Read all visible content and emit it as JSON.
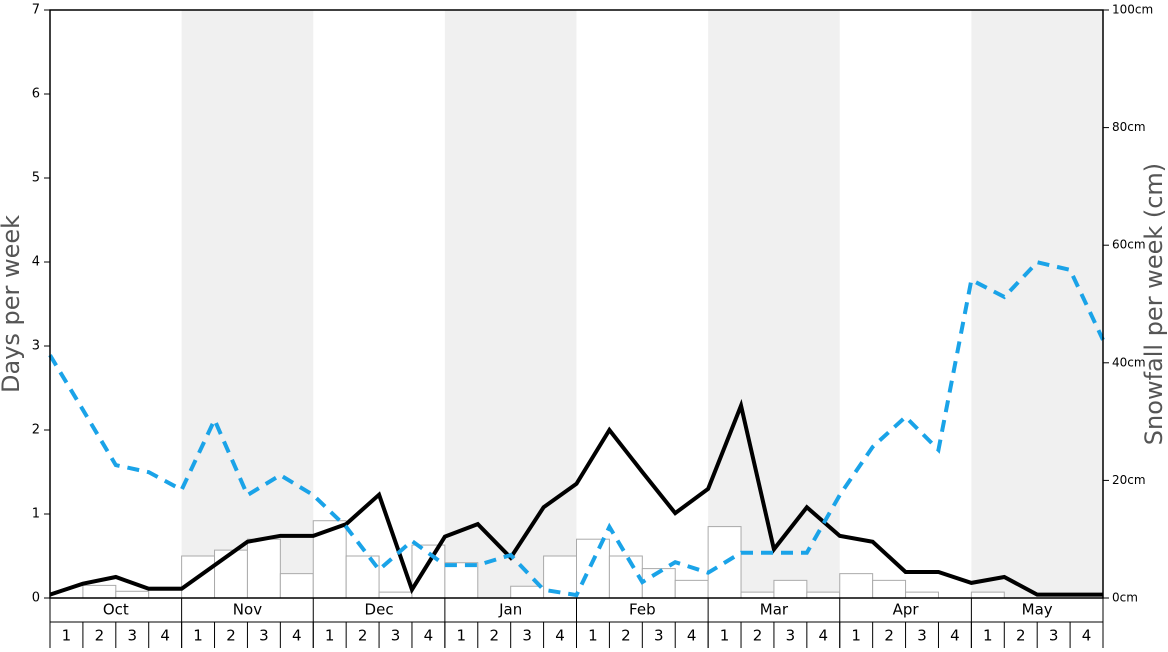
{
  "chart_data": {
    "type": "combo",
    "ylabel": "Days per week",
    "y2label": "Snowfall per week (cm)",
    "ylim": [
      0,
      7
    ],
    "yticks": [
      0,
      1,
      2,
      3,
      4,
      5,
      6,
      7
    ],
    "y2lim": [
      0,
      100
    ],
    "y2ticks": [
      {
        "value": 0,
        "label": "0cm"
      },
      {
        "value": 20,
        "label": "20cm"
      },
      {
        "value": 40,
        "label": "40cm"
      },
      {
        "value": 60,
        "label": "60cm"
      },
      {
        "value": 80,
        "label": "80cm"
      },
      {
        "value": 100,
        "label": "100cm"
      }
    ],
    "xlim": [
      0,
      32
    ],
    "months": [
      "Oct",
      "Nov",
      "Dec",
      "Jan",
      "Feb",
      "Mar",
      "Apr",
      "May"
    ],
    "weeks": [
      "1",
      "2",
      "3",
      "4",
      "1",
      "2",
      "3",
      "4",
      "1",
      "2",
      "3",
      "4",
      "1",
      "2",
      "3",
      "4",
      "1",
      "2",
      "3",
      "4",
      "1",
      "2",
      "3",
      "4",
      "1",
      "2",
      "3",
      "4",
      "1",
      "2",
      "3",
      "4"
    ],
    "shade_color": "#f0f0f0",
    "bars": {
      "color": "#ffffff",
      "edge": "#aaaaaa",
      "values": [
        0,
        0.15,
        0.08,
        0.13,
        0.5,
        0.57,
        0.7,
        0.29,
        0.92,
        0.5,
        0.07,
        0.63,
        0.42,
        0,
        0.14,
        0.5,
        0.7,
        0.5,
        0.35,
        0.21,
        0.85,
        0.07,
        0.21,
        0.07,
        0.29,
        0.21,
        0.07,
        0,
        0.07,
        0,
        0,
        0
      ]
    },
    "x": [
      0,
      1,
      2,
      3,
      4,
      5,
      6,
      7,
      8,
      9,
      10,
      11,
      12,
      13,
      14,
      15,
      16,
      17,
      18,
      19,
      20,
      21,
      22,
      23,
      24,
      25,
      26,
      27,
      28,
      29,
      30,
      31,
      32
    ],
    "series": [
      {
        "color": "#000000",
        "dashed": false,
        "axis": "y",
        "values": [
          0.04,
          0.17,
          0.25,
          0.11,
          0.11,
          0.39,
          0.67,
          0.74,
          0.74,
          0.88,
          1.23,
          0.1,
          0.73,
          0.88,
          0.48,
          1.08,
          1.36,
          2.0,
          1.5,
          1.01,
          1.3,
          2.29,
          0.58,
          1.08,
          0.74,
          0.67,
          0.31,
          0.31,
          0.18,
          0.25,
          0.04,
          0.04,
          0.04
        ]
      },
      {
        "color": "#1aa3e8",
        "dashed": true,
        "axis": "y2",
        "values": [
          41.3,
          32.0,
          22.6,
          21.4,
          18.4,
          30.3,
          17.5,
          20.9,
          17.5,
          12.1,
          4.8,
          9.7,
          5.6,
          5.6,
          7.3,
          1.4,
          0.5,
          12.1,
          2.7,
          6.1,
          4.3,
          7.7,
          7.7,
          7.7,
          17.5,
          25.7,
          30.8,
          25.2,
          54.1,
          51.2,
          57.1,
          55.8,
          43.9
        ]
      }
    ]
  }
}
